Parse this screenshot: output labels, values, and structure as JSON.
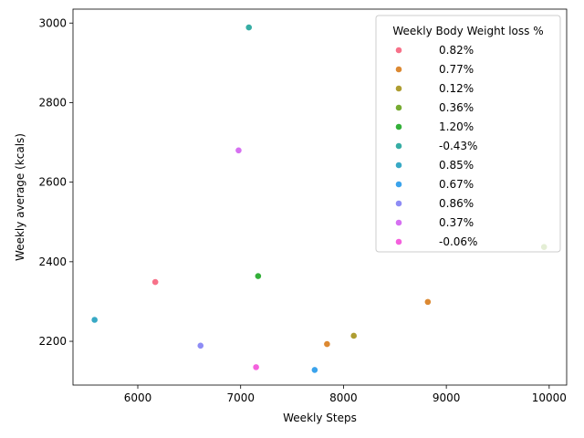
{
  "chart_data": {
    "type": "scatter",
    "xlabel": "Weekly Steps",
    "ylabel": "Weekly average (kcals)",
    "xlim": [
      5370,
      10170
    ],
    "ylim": [
      2090,
      3035
    ],
    "xticks": [
      6000,
      7000,
      8000,
      9000,
      10000
    ],
    "yticks": [
      2200,
      2400,
      2600,
      2800,
      3000
    ],
    "grid": false,
    "legend": {
      "title": "Weekly Body Weight loss %",
      "placement": "top-right",
      "entries": [
        "0.82%",
        "0.77%",
        "0.12%",
        "0.36%",
        "1.20%",
        "-0.43%",
        "0.85%",
        "0.67%",
        "0.86%",
        "0.37%",
        "-0.06%"
      ]
    },
    "series": [
      {
        "name": "0.82%",
        "color": "#f77189",
        "points": [
          {
            "x": 6170,
            "y": 2349
          }
        ]
      },
      {
        "name": "0.77%",
        "color": "#dc8932",
        "points": [
          {
            "x": 8820,
            "y": 2299
          },
          {
            "x": 7840,
            "y": 2193
          }
        ]
      },
      {
        "name": "0.12%",
        "color": "#ae9d31",
        "points": [
          {
            "x": 8100,
            "y": 2214
          }
        ]
      },
      {
        "name": "0.36%",
        "color": "#77ab31",
        "points": [
          {
            "x": 9950,
            "y": 2437
          }
        ]
      },
      {
        "name": "1.20%",
        "color": "#33b039",
        "points": [
          {
            "x": 7170,
            "y": 2364
          }
        ]
      },
      {
        "name": "-0.43%",
        "color": "#36ada4",
        "points": [
          {
            "x": 7080,
            "y": 2989
          }
        ]
      },
      {
        "name": "0.85%",
        "color": "#38a9c5",
        "points": [
          {
            "x": 5580,
            "y": 2254
          }
        ]
      },
      {
        "name": "0.67%",
        "color": "#3ba3ec",
        "points": [
          {
            "x": 7720,
            "y": 2128
          }
        ]
      },
      {
        "name": "0.86%",
        "color": "#8e8cf5",
        "points": [
          {
            "x": 6610,
            "y": 2189
          }
        ]
      },
      {
        "name": "0.37%",
        "color": "#d670f1",
        "points": [
          {
            "x": 6980,
            "y": 2680
          }
        ]
      },
      {
        "name": "-0.06%",
        "color": "#f461dd",
        "points": [
          {
            "x": 7150,
            "y": 2135
          }
        ]
      }
    ]
  }
}
